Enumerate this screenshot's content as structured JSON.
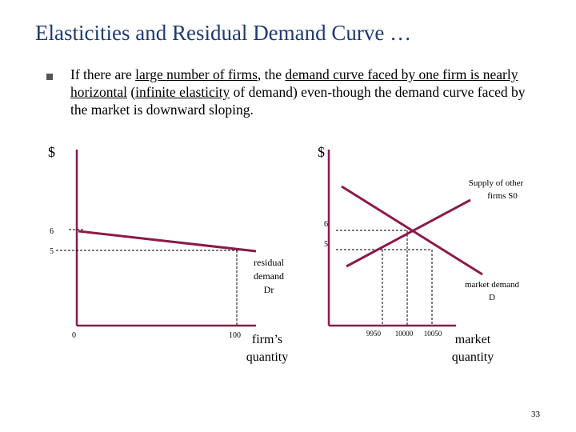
{
  "slide": {
    "title": "Elasticities and Residual Demand Curve …",
    "bullet": {
      "part1": "If there are ",
      "u1": "large number of firms",
      "part2": ", the ",
      "u2": "demand curve faced by one firm is nearly horizontal",
      "part3": " (",
      "u3": "infinite elasticity",
      "part4": " of demand) even-though the demand curve faced by the market is downward sloping."
    },
    "page_number": "33"
  },
  "left_panel": {
    "y_axis_label": "$",
    "y_ticks": [
      "6",
      "5"
    ],
    "x_ticks": [
      "0",
      "100"
    ],
    "x_axis_label_line1": "firm’s",
    "x_axis_label_line2": "quantity",
    "curve_label_line1": "residual",
    "curve_label_line2": "demand",
    "curve_label_line3": "Dr"
  },
  "right_panel": {
    "y_axis_label": "$",
    "y_ticks": [
      "6",
      "5"
    ],
    "x_ticks": [
      "9950",
      "10000",
      "10050"
    ],
    "x_axis_label_line1": "market",
    "x_axis_label_line2": "quantity",
    "supply_label_line1": "Supply of other",
    "supply_label_line2": "firms S0",
    "demand_label_line1": "market demand",
    "demand_label_line2": "D"
  },
  "colors": {
    "title": "#1f3b6e",
    "axis": "#8b1a4a",
    "curve": "#8b1a4a",
    "guide": "#000000"
  }
}
